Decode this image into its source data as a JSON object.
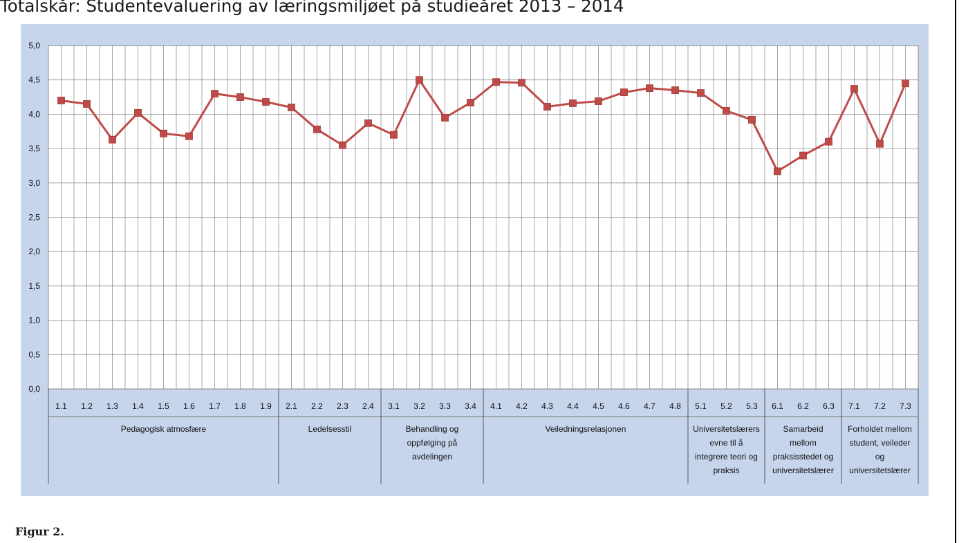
{
  "page": {
    "title": "Totalskår: Studentevaluering av læringsmiljøet på studieåret 2013 – 2014",
    "caption": "Figur 2."
  },
  "chart_data": {
    "type": "line",
    "ylim": [
      0,
      5
    ],
    "yticks": [
      "0,0",
      "0,5",
      "1,0",
      "1,5",
      "2,0",
      "2,5",
      "3,0",
      "3,5",
      "4,0",
      "4,5",
      "5,0"
    ],
    "grid": true,
    "colors": {
      "plot_bg": "#c6d5ec",
      "plot_area": "#ffffff",
      "line": "#be4b48",
      "grid": "#909090"
    },
    "categories": [
      "1.1",
      "1.2",
      "1.3",
      "1.4",
      "1.5",
      "1.6",
      "1.7",
      "1.8",
      "1.9",
      "2.1",
      "2.2",
      "2.3",
      "2.4",
      "3.1",
      "3.2",
      "3.3",
      "3.4",
      "4.1",
      "4.2",
      "4.3",
      "4.4",
      "4.5",
      "4.6",
      "4.7",
      "4.8",
      "5.1",
      "5.2",
      "5.3",
      "6.1",
      "6.2",
      "6.3",
      "7.1",
      "7.2",
      "7.3"
    ],
    "groups": [
      {
        "label": "Pedagogisk atmosfære",
        "lines": [
          "Pedagogisk atmosfære"
        ],
        "count": 9
      },
      {
        "label": "Ledelsesstil",
        "lines": [
          "Ledelsesstil"
        ],
        "count": 4
      },
      {
        "label": "Behandling og oppfølging på avdelingen",
        "lines": [
          "Behandling og",
          "oppfølging på",
          "avdelingen"
        ],
        "count": 4
      },
      {
        "label": "Veiledningsrelasjonen",
        "lines": [
          "Veiledningsrelasjonen"
        ],
        "count": 8
      },
      {
        "label": "Universitetslærers evne til å integrere teori og praksis",
        "lines": [
          "Universitetslærers",
          "evne til å",
          "integrere teori og",
          "praksis"
        ],
        "count": 3
      },
      {
        "label": "Samarbeid mellom praksisstedet og universitetslærer",
        "lines": [
          "Samarbeid",
          "mellom",
          "praksisstedet og",
          "universitetslærer"
        ],
        "count": 3
      },
      {
        "label": "Forholdet mellom student, veileder og universitetslærer",
        "lines": [
          "Forholdet mellom",
          "student, veileder",
          "og",
          "universitetslærer"
        ],
        "count": 3
      }
    ],
    "series": [
      {
        "values": [
          4.2,
          4.15,
          3.63,
          4.02,
          3.72,
          3.68,
          4.3,
          4.25,
          4.18,
          4.1,
          3.78,
          3.55,
          3.87,
          3.7,
          4.5,
          3.95,
          4.17,
          4.47,
          4.46,
          4.11,
          4.16,
          4.19,
          4.32,
          4.38,
          4.35,
          4.31,
          4.05,
          3.92,
          3.17,
          3.4,
          3.6,
          4.37,
          3.57,
          4.45
        ]
      }
    ]
  }
}
